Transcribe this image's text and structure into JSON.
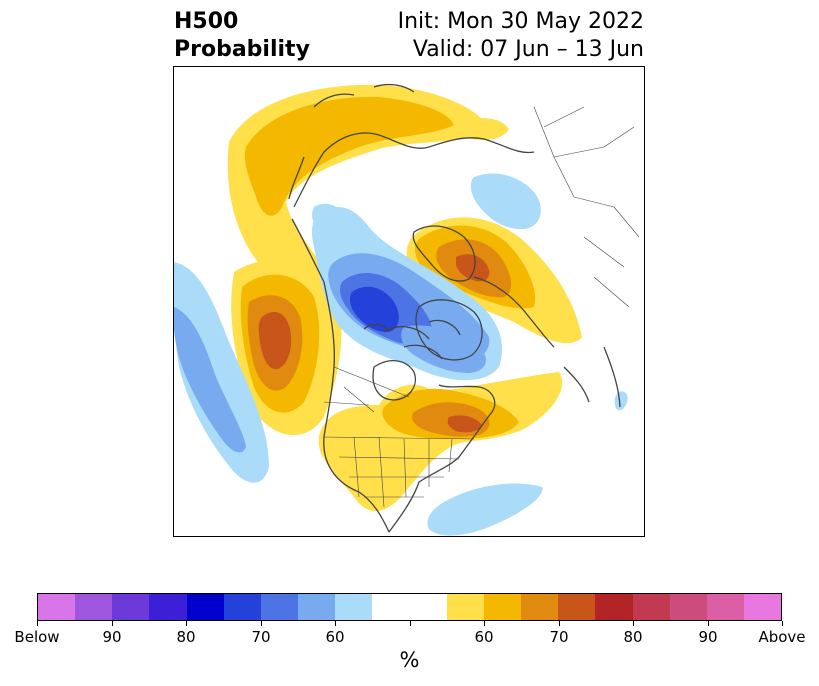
{
  "title": {
    "line1": "H500",
    "line2": "Probability",
    "init": "Init: Mon 30 May 2022",
    "valid": "Valid: 07 Jun – 13 Jun"
  },
  "colorbar": {
    "colors": [
      "#d875e8",
      "#9f56df",
      "#6b3ad9",
      "#3c1fd6",
      "#0000cc",
      "#2441d9",
      "#4c74e5",
      "#78aaf0",
      "#aadcfa",
      "#ffffff",
      "#ffffff",
      "#ffe04a",
      "#f4b800",
      "#e08a10",
      "#c8561a",
      "#b22426",
      "#c23a52",
      "#cc4c7c",
      "#dc5fa6",
      "#e878e0"
    ],
    "tick_labels": [
      "Below",
      "90",
      "80",
      "70",
      "60",
      "",
      "60",
      "70",
      "80",
      "90",
      "Above"
    ],
    "unit": "%"
  },
  "map": {
    "below_colors": [
      "#aadcfa",
      "#78aaf0",
      "#4c74e5",
      "#2441d9"
    ],
    "above_colors": [
      "#ffe04a",
      "#f4b800",
      "#e08a10",
      "#c8561a"
    ],
    "coastline_color": "#444444"
  }
}
